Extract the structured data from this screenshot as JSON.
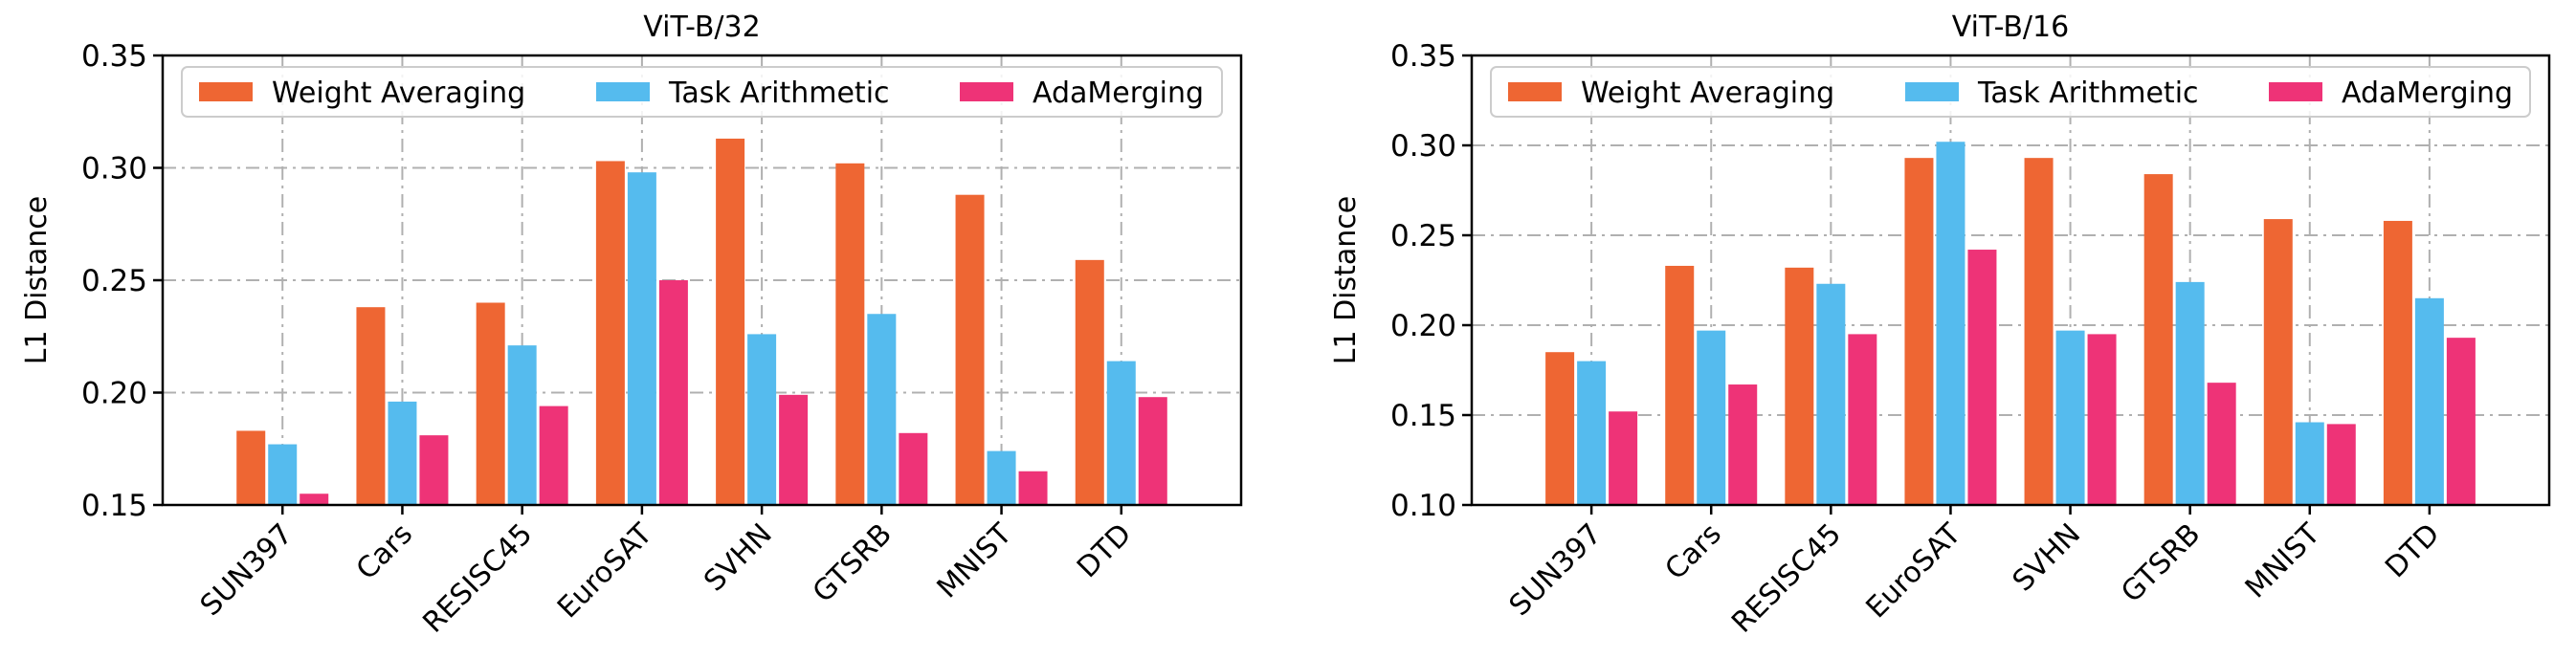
{
  "chart_data": [
    {
      "type": "bar",
      "title": "ViT-B/32",
      "xlabel": "",
      "ylabel": "L1 Distance",
      "categories": [
        "SUN397",
        "Cars",
        "RESISC45",
        "EuroSAT",
        "SVHN",
        "GTSRB",
        "MNIST",
        "DTD"
      ],
      "series": [
        {
          "name": "Weight Averaging",
          "color": "#EE6633",
          "values": [
            0.183,
            0.238,
            0.24,
            0.303,
            0.313,
            0.302,
            0.288,
            0.259
          ]
        },
        {
          "name": "Task Arithmetic",
          "color": "#55BBEE",
          "values": [
            0.177,
            0.196,
            0.221,
            0.298,
            0.226,
            0.235,
            0.174,
            0.214
          ]
        },
        {
          "name": "AdaMerging",
          "color": "#EE3377",
          "values": [
            0.155,
            0.181,
            0.194,
            0.25,
            0.199,
            0.182,
            0.165,
            0.198
          ]
        }
      ],
      "ylim": [
        0.15,
        0.35
      ],
      "yticks": [
        "0.15",
        "0.20",
        "0.25",
        "0.30",
        "0.35"
      ],
      "grid": true,
      "legend": "top"
    },
    {
      "type": "bar",
      "title": "ViT-B/16",
      "xlabel": "",
      "ylabel": "L1 Distance",
      "categories": [
        "SUN397",
        "Cars",
        "RESISC45",
        "EuroSAT",
        "SVHN",
        "GTSRB",
        "MNIST",
        "DTD"
      ],
      "series": [
        {
          "name": "Weight Averaging",
          "color": "#EE6633",
          "values": [
            0.185,
            0.233,
            0.232,
            0.293,
            0.293,
            0.284,
            0.259,
            0.258
          ]
        },
        {
          "name": "Task Arithmetic",
          "color": "#55BBEE",
          "values": [
            0.18,
            0.197,
            0.223,
            0.302,
            0.197,
            0.224,
            0.146,
            0.215
          ]
        },
        {
          "name": "AdaMerging",
          "color": "#EE3377",
          "values": [
            0.152,
            0.167,
            0.195,
            0.242,
            0.195,
            0.168,
            0.145,
            0.193
          ]
        }
      ],
      "ylim": [
        0.1,
        0.35
      ],
      "yticks": [
        "0.10",
        "0.15",
        "0.20",
        "0.25",
        "0.30",
        "0.35"
      ],
      "grid": true,
      "legend": "top"
    }
  ]
}
